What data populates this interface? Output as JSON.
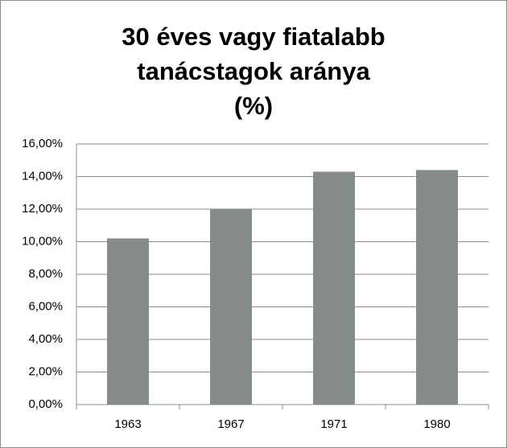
{
  "chart_data": {
    "type": "bar",
    "title": [
      "30 éves vagy fiatalabb",
      "tanácstagok aránya",
      "(%)"
    ],
    "categories": [
      "1963",
      "1967",
      "1971",
      "1980"
    ],
    "values": [
      10.2,
      12.0,
      14.3,
      14.4
    ],
    "color": "#868b8b",
    "ylim": [
      0,
      16
    ],
    "yticks": [
      {
        "value": 0,
        "label": "0,00%"
      },
      {
        "value": 2,
        "label": "2,00%"
      },
      {
        "value": 4,
        "label": "4,00%"
      },
      {
        "value": 6,
        "label": "6,00%"
      },
      {
        "value": 8,
        "label": "8,00%"
      },
      {
        "value": 10,
        "label": "10,00%"
      },
      {
        "value": 12,
        "label": "12,00%"
      },
      {
        "value": 14,
        "label": "14,00%"
      },
      {
        "value": 16,
        "label": "16,00%"
      }
    ],
    "grid": true
  }
}
